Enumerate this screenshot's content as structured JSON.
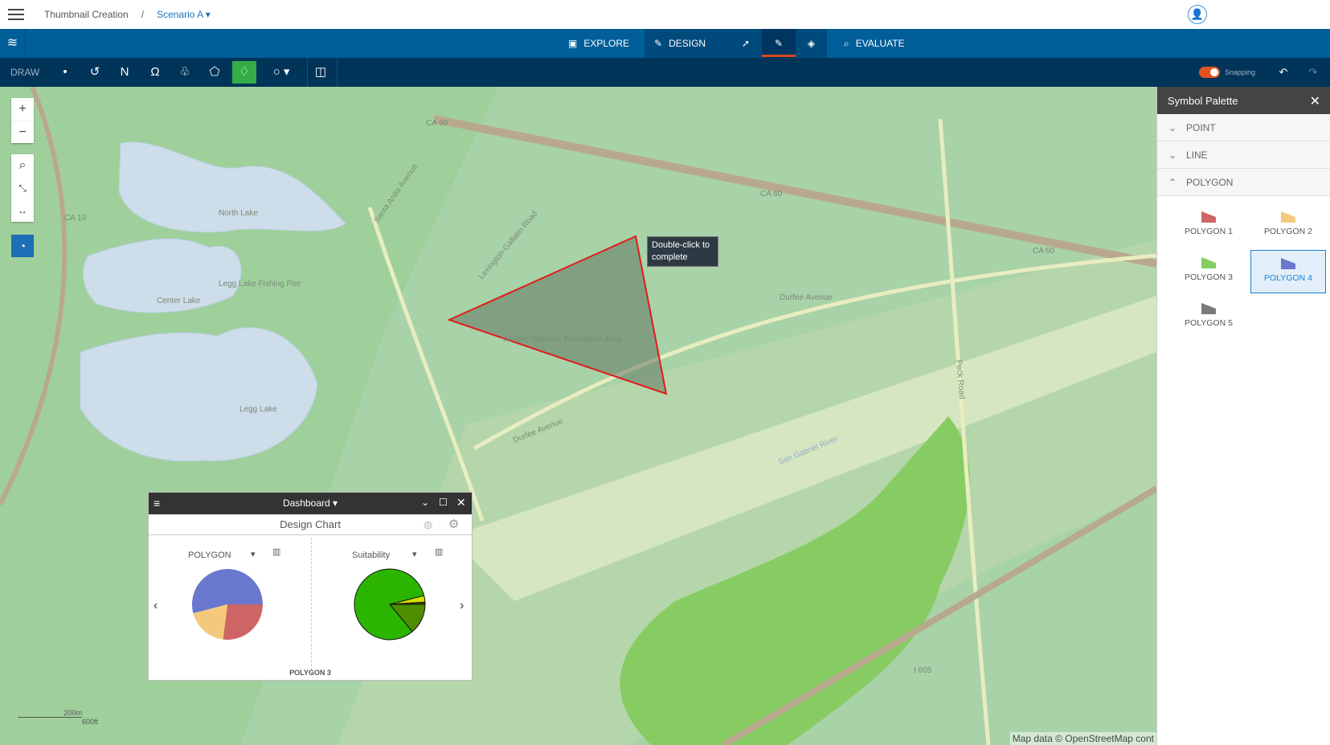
{
  "header": {
    "breadcrumb_root": "Thumbnail Creation",
    "breadcrumb_sep": "/",
    "scenario": "Scenario A ▾"
  },
  "nav": {
    "explore": "EXPLORE",
    "design": "DESIGN",
    "evaluate": "EVALUATE"
  },
  "draw": {
    "label": "DRAW",
    "snapping_label": "Snapping",
    "snapping_on": true
  },
  "map": {
    "tooltip": "Double-click to complete",
    "attribution": "Map data © OpenStreetMap cont",
    "scale": {
      "metric": "200m",
      "imperial": "600ft"
    },
    "labels": {
      "north_lake": "North Lake",
      "center_lake": "Center Lake",
      "legg_lake": "Legg Lake",
      "legg_pier": "Legg Lake Fishing Pier",
      "whittier": "Whittier Narrows Recreation Area",
      "durfee1": "Durfee Avenue",
      "durfee2": "Durfee Avenue",
      "santa_anita": "Santa Anita Avenue",
      "ca60a": "CA 60",
      "ca60b": "CA 60",
      "ca60c": "CA 60",
      "ca19": "CA 19",
      "peck": "Peck Road",
      "river": "San Gabriel River",
      "i605": "I 605",
      "lexington": "Lexington-Gallatin Road"
    }
  },
  "dashboard": {
    "title": "Dashboard",
    "chart_title": "Design Chart",
    "left_select": "POLYGON",
    "right_select": "Suitability",
    "footer": "POLYGON 3"
  },
  "chart_data": [
    {
      "type": "pie",
      "selector": "POLYGON",
      "slices": [
        {
          "value": 27,
          "color": "#cd6564"
        },
        {
          "value": 19,
          "color": "#f5c97b"
        },
        {
          "value": 54,
          "color": "#6977cf"
        }
      ]
    },
    {
      "type": "pie",
      "selector": "Suitability",
      "slices": [
        {
          "value": 14,
          "color": "#4f8d00"
        },
        {
          "value": 82,
          "color": "#2bb500"
        },
        {
          "value": 3,
          "color": "#d4e000"
        },
        {
          "value": 1,
          "color": "#3a4a00"
        }
      ]
    }
  ],
  "palette": {
    "title": "Symbol Palette",
    "sections": [
      {
        "label": "POINT",
        "open": false
      },
      {
        "label": "LINE",
        "open": false
      },
      {
        "label": "POLYGON",
        "open": true
      }
    ],
    "symbols": [
      {
        "label": "POLYGON 1",
        "color": "#cd6564"
      },
      {
        "label": "POLYGON 2",
        "color": "#f5c97b"
      },
      {
        "label": "POLYGON 3",
        "color": "#85cf62"
      },
      {
        "label": "POLYGON 4",
        "color": "#6977cf",
        "selected": true
      },
      {
        "label": "POLYGON 5",
        "color": "#7a7a7a"
      }
    ]
  }
}
